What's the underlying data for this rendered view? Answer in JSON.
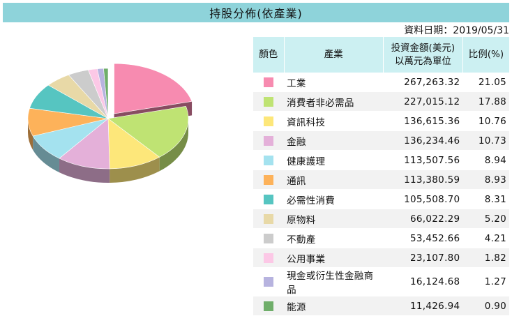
{
  "header": {
    "title": "持股分佈(依產業)",
    "date_label": "資料日期：2019/05/31"
  },
  "table": {
    "headers": {
      "color": "顏色",
      "industry": "產業",
      "amount_line1": "投資金額(美元)",
      "amount_line2": "以萬元為單位",
      "pct": "比例(%)"
    }
  },
  "chart_data": {
    "type": "pie",
    "categories": [
      "工業",
      "消費者非必需品",
      "資訊科技",
      "金融",
      "健康護理",
      "通訊",
      "必需性消費",
      "原物料",
      "不動產",
      "公用事業",
      "現金或衍生性金融商品",
      "能源"
    ],
    "amounts": [
      "267,263.32",
      "227,015.12",
      "136,615.36",
      "136,234.46",
      "113,507.56",
      "113,380.59",
      "105,508.70",
      "66,022.29",
      "53,452.66",
      "23,107.80",
      "16,124.68",
      "11,426.94"
    ],
    "values": [
      21.05,
      17.88,
      10.76,
      10.73,
      8.94,
      8.93,
      8.31,
      5.2,
      4.21,
      1.82,
      1.27,
      0.9
    ],
    "values_text": [
      "21.05",
      "17.88",
      "10.76",
      "10.73",
      "8.94",
      "8.93",
      "8.31",
      "5.20",
      "4.21",
      "1.82",
      "1.27",
      "0.90"
    ],
    "colors": [
      "#f78bb0",
      "#bfe373",
      "#fde77a",
      "#e4b0d9",
      "#a4e2ef",
      "#fdb25a",
      "#56c5c1",
      "#e8d9a7",
      "#cccccc",
      "#fcc8e6",
      "#b7b3df",
      "#6fae6a"
    ],
    "exploded": "工業"
  }
}
